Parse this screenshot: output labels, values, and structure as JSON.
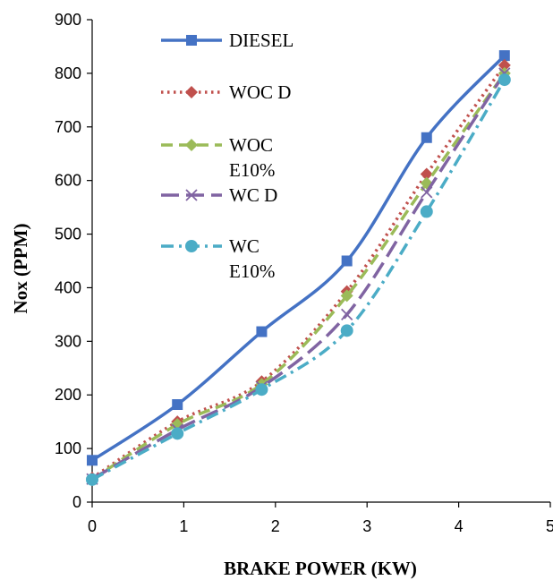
{
  "chart_data": {
    "type": "line",
    "xlabel": "BRAKE POWER (KW)",
    "ylabel": "Nox (PPM)",
    "xlim": [
      0,
      5
    ],
    "ylim": [
      0,
      900
    ],
    "xticks": [
      "0",
      "1",
      "2",
      "3",
      "4",
      "5"
    ],
    "yticks": [
      "0",
      "100",
      "200",
      "300",
      "400",
      "500",
      "600",
      "700",
      "800",
      "900"
    ],
    "grid": false,
    "legend_position": "top-left",
    "x": [
      0,
      0.93,
      1.85,
      2.78,
      3.65,
      4.5
    ],
    "series": [
      {
        "name": "DIESEL",
        "label_lines": [
          "DIESEL"
        ],
        "color": "#4472C4",
        "dash": "solid",
        "marker": "square",
        "values": [
          78,
          182,
          318,
          450,
          680,
          833
        ]
      },
      {
        "name": "WOC D",
        "label_lines": [
          "WOC D"
        ],
        "color": "#C0504D",
        "dash": "dotted",
        "marker": "diamond",
        "values": [
          45,
          150,
          225,
          393,
          612,
          815
        ]
      },
      {
        "name": "WOC E10%",
        "label_lines": [
          "WOC",
          "E10%"
        ],
        "color": "#9BBB59",
        "dash": "dashed",
        "marker": "diamond",
        "values": [
          42,
          145,
          220,
          385,
          595,
          800
        ]
      },
      {
        "name": "WC D",
        "label_lines": [
          "WC D"
        ],
        "color": "#8064A2",
        "dash": "longdash",
        "marker": "x",
        "values": [
          43,
          135,
          215,
          350,
          578,
          800
        ]
      },
      {
        "name": "WC E10%",
        "label_lines": [
          "WC",
          "E10%"
        ],
        "color": "#4BACC6",
        "dash": "dashdot",
        "marker": "circle",
        "values": [
          42,
          128,
          210,
          320,
          542,
          788
        ]
      }
    ]
  }
}
